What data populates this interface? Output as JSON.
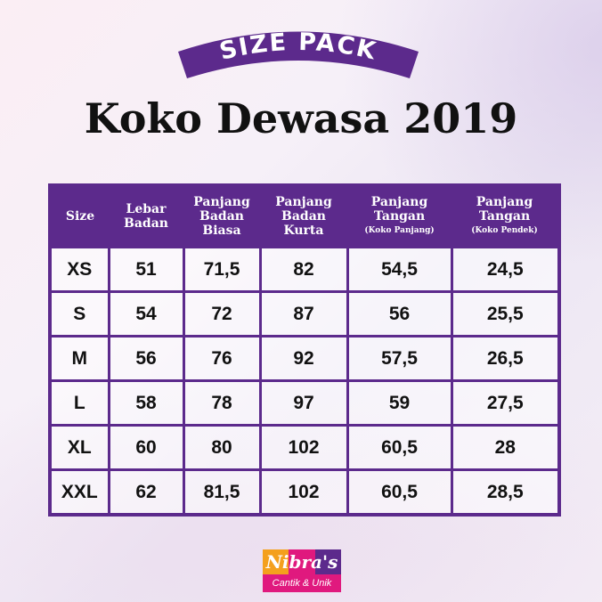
{
  "banner": {
    "text": "SIZE PACK"
  },
  "title": "Koko Dewasa 2019",
  "colors": {
    "primary": "#5c2a8c",
    "logo_orange": "#f4a01d",
    "logo_pink": "#e0197e",
    "logo_purple": "#5c2a8c"
  },
  "table": {
    "headers": [
      {
        "main": "Size",
        "sub": ""
      },
      {
        "main": "Lebar Badan",
        "sub": ""
      },
      {
        "main": "Panjang Badan Biasa",
        "sub": ""
      },
      {
        "main": "Panjang Badan Kurta",
        "sub": ""
      },
      {
        "main": "Panjang Tangan",
        "sub": "(Koko Panjang)"
      },
      {
        "main": "Panjang Tangan",
        "sub": "(Koko Pendek)"
      }
    ],
    "rows": [
      [
        "XS",
        "51",
        "71,5",
        "82",
        "54,5",
        "24,5"
      ],
      [
        "S",
        "54",
        "72",
        "87",
        "56",
        "25,5"
      ],
      [
        "M",
        "56",
        "76",
        "92",
        "57,5",
        "26,5"
      ],
      [
        "L",
        "58",
        "78",
        "97",
        "59",
        "27,5"
      ],
      [
        "XL",
        "60",
        "80",
        "102",
        "60,5",
        "28"
      ],
      [
        "XXL",
        "62",
        "81,5",
        "102",
        "60,5",
        "28,5"
      ]
    ]
  },
  "logo": {
    "brand": "Nibra's",
    "tagline": "Cantik & Unik"
  }
}
